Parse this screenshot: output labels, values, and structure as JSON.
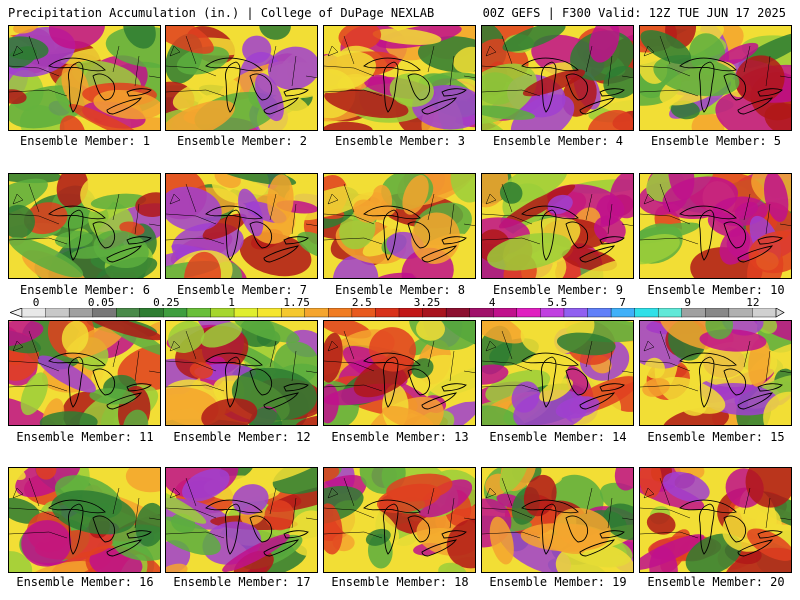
{
  "header": {
    "left": "Precipitation Accumulation (in.) | College of DuPage NEXLAB",
    "right": "00Z GEFS | F300 Valid: 12Z TUE JUN 17 2025"
  },
  "panels": [
    {
      "label": "Ensemble Member: 1"
    },
    {
      "label": "Ensemble Member: 2"
    },
    {
      "label": "Ensemble Member: 3"
    },
    {
      "label": "Ensemble Member: 4"
    },
    {
      "label": "Ensemble Member: 5"
    },
    {
      "label": "Ensemble Member: 6"
    },
    {
      "label": "Ensemble Member: 7"
    },
    {
      "label": "Ensemble Member: 8"
    },
    {
      "label": "Ensemble Member: 9"
    },
    {
      "label": "Ensemble Member: 10"
    },
    {
      "label": "Ensemble Member: 11"
    },
    {
      "label": "Ensemble Member: 12"
    },
    {
      "label": "Ensemble Member: 13"
    },
    {
      "label": "Ensemble Member: 14"
    },
    {
      "label": "Ensemble Member: 15"
    },
    {
      "label": "Ensemble Member: 16"
    },
    {
      "label": "Ensemble Member: 17"
    },
    {
      "label": "Ensemble Member: 18"
    },
    {
      "label": "Ensemble Member: 19"
    },
    {
      "label": "Ensemble Member: 20"
    }
  ],
  "colorbar": {
    "ticks": [
      "0",
      "0.05",
      "0.25",
      "1",
      "1.75",
      "2.5",
      "3.25",
      "4",
      "5.5",
      "7",
      "9",
      "12"
    ],
    "colors": [
      "#e8e8e8",
      "#c8c8c8",
      "#a0a0a0",
      "#787878",
      "#4a8a4a",
      "#2e7d32",
      "#3f9e3f",
      "#6abf3a",
      "#a6d62e",
      "#e0ee2e",
      "#f5e62e",
      "#f5c82e",
      "#f5a52e",
      "#f07c22",
      "#e85a1e",
      "#d8321a",
      "#c21818",
      "#a8141e",
      "#8c1030",
      "#a0106a",
      "#c0108c",
      "#e020c0",
      "#c040e0",
      "#9060f0",
      "#6080f8",
      "#40b0f8",
      "#30e0e8",
      "#60e8d8",
      "#a0a0a0",
      "#888888",
      "#b0b0b0",
      "#d0d0d0"
    ]
  },
  "palette": {
    "green_dark": "#2e7d32",
    "green": "#5cae3e",
    "green_light": "#9bcf3a",
    "yellow": "#f2de35",
    "orange": "#f5a52e",
    "red": "#e04020",
    "red_dark": "#b01818",
    "magenta": "#c0108c",
    "violet": "#a040d0",
    "gray": "#9a9a9a",
    "cyan": "#40d0f0"
  }
}
